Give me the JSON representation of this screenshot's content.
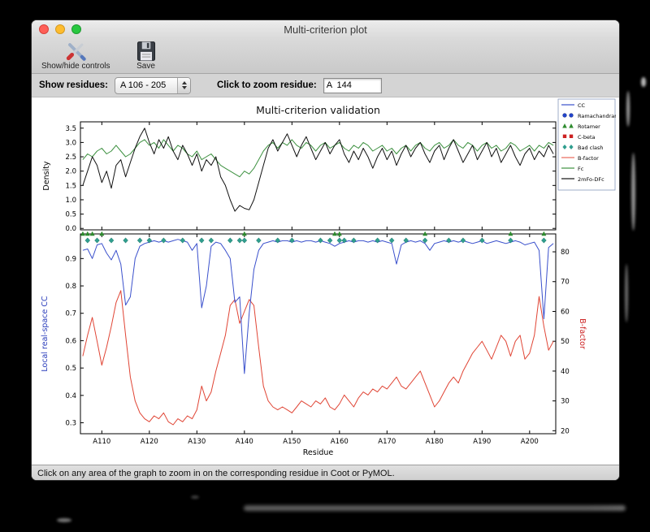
{
  "window": {
    "title": "Multi-criterion plot",
    "traffic_lights": {
      "close": "#ff5f57",
      "minimize": "#febc2e",
      "zoom": "#28c840"
    }
  },
  "toolbar": {
    "show_hide_label": "Show/hide controls",
    "save_label": "Save",
    "icons": {
      "show_hide": "crossed-tools-icon",
      "save": "floppy-disk-icon"
    }
  },
  "controls": {
    "show_residues_label": "Show residues:",
    "residue_range_value": "A 106 - 205",
    "zoom_residue_label": "Click to zoom residue:",
    "zoom_residue_value": "A  144"
  },
  "status_bar": {
    "message": "Click on any area of the graph to zoom in on the corresponding residue in Coot or PyMOL."
  },
  "chart_data": {
    "type": "line",
    "title": "Multi-criterion validation",
    "xlabel": "Residue",
    "x_start": 106,
    "xlim": [
      105.5,
      205.5
    ],
    "x_tick_values": [
      110,
      120,
      130,
      140,
      150,
      160,
      170,
      180,
      190,
      200
    ],
    "x_ticks": [
      "A110",
      "A120",
      "A130",
      "A140",
      "A150",
      "A160",
      "A170",
      "A180",
      "A190",
      "A200"
    ],
    "top_plot": {
      "ylabel": "Density",
      "ylim": [
        -0.05,
        3.72
      ],
      "yticks": [
        0.0,
        0.5,
        1.0,
        1.5,
        2.0,
        2.5,
        3.0,
        3.5
      ],
      "series": [
        {
          "name": "Fc",
          "color": "#3d9140",
          "values": [
            2.4,
            2.6,
            2.5,
            2.7,
            2.8,
            2.6,
            2.7,
            2.9,
            2.7,
            2.5,
            2.6,
            2.8,
            3.0,
            3.1,
            2.9,
            3.0,
            2.8,
            3.1,
            2.9,
            2.7,
            2.9,
            2.8,
            2.6,
            2.5,
            2.7,
            2.4,
            2.5,
            2.6,
            2.4,
            2.2,
            2.1,
            2.0,
            1.9,
            1.8,
            2.0,
            1.9,
            2.1,
            2.4,
            2.7,
            2.9,
            3.0,
            2.8,
            3.0,
            2.9,
            3.1,
            2.9,
            2.8,
            3.0,
            2.9,
            2.7,
            2.9,
            3.0,
            2.8,
            2.9,
            3.0,
            2.8,
            2.7,
            2.9,
            2.8,
            3.0,
            2.9,
            2.7,
            2.8,
            2.9,
            2.7,
            2.8,
            2.6,
            2.8,
            2.9,
            2.7,
            2.9,
            3.0,
            2.8,
            2.7,
            2.9,
            3.0,
            2.8,
            2.9,
            3.1,
            2.9,
            2.8,
            3.0,
            2.9,
            2.7,
            2.9,
            3.0,
            2.8,
            2.9,
            2.7,
            2.8,
            3.0,
            2.9,
            2.7,
            2.8,
            2.9,
            2.7,
            2.9,
            2.8,
            3.0,
            2.9
          ]
        },
        {
          "name": "2mFo-DFc",
          "color": "#111111",
          "values": [
            1.5,
            2.0,
            2.5,
            2.2,
            1.6,
            2.0,
            1.4,
            2.2,
            2.4,
            1.8,
            2.3,
            2.8,
            3.2,
            3.5,
            3.0,
            2.6,
            3.1,
            2.8,
            3.2,
            2.7,
            2.4,
            2.9,
            2.6,
            2.2,
            2.6,
            2.0,
            2.4,
            2.2,
            2.5,
            1.8,
            1.5,
            1.0,
            0.6,
            0.8,
            0.7,
            0.65,
            1.0,
            1.6,
            2.2,
            2.8,
            3.1,
            2.7,
            3.0,
            3.3,
            2.9,
            2.5,
            2.9,
            3.2,
            2.8,
            2.4,
            2.7,
            3.0,
            2.6,
            2.9,
            3.1,
            2.6,
            2.3,
            2.7,
            2.4,
            2.8,
            2.5,
            2.1,
            2.5,
            2.8,
            2.4,
            2.7,
            2.2,
            2.6,
            2.9,
            2.5,
            2.8,
            3.0,
            2.6,
            2.3,
            2.7,
            2.9,
            2.4,
            2.8,
            3.1,
            2.7,
            2.3,
            2.6,
            2.9,
            2.4,
            2.7,
            3.0,
            2.5,
            2.8,
            2.3,
            2.6,
            2.9,
            2.5,
            2.2,
            2.6,
            2.8,
            2.4,
            2.7,
            2.5,
            2.9,
            2.6
          ]
        }
      ]
    },
    "bottom_plot": {
      "ylabel_left": "Local real-space CC",
      "ylabel_left_color": "#2a3dbb",
      "ylim_left": [
        0.26,
        0.99
      ],
      "yticks_left": [
        0.3,
        0.4,
        0.5,
        0.6,
        0.7,
        0.8,
        0.9
      ],
      "ylabel_right": "B-factor",
      "ylabel_right_color": "#cc2222",
      "ylim_right": [
        19,
        86
      ],
      "yticks_right": [
        20,
        30,
        40,
        50,
        60,
        70,
        80
      ],
      "cc_series": {
        "name": "CC",
        "color": "#3a50cc",
        "values": [
          0.93,
          0.935,
          0.9,
          0.95,
          0.955,
          0.92,
          0.895,
          0.93,
          0.88,
          0.73,
          0.76,
          0.9,
          0.945,
          0.955,
          0.96,
          0.965,
          0.96,
          0.965,
          0.96,
          0.965,
          0.97,
          0.965,
          0.96,
          0.93,
          0.955,
          0.72,
          0.8,
          0.945,
          0.96,
          0.955,
          0.93,
          0.9,
          0.74,
          0.76,
          0.48,
          0.7,
          0.86,
          0.93,
          0.955,
          0.96,
          0.965,
          0.96,
          0.965,
          0.965,
          0.96,
          0.965,
          0.96,
          0.965,
          0.965,
          0.96,
          0.965,
          0.96,
          0.955,
          0.945,
          0.955,
          0.96,
          0.965,
          0.96,
          0.965,
          0.965,
          0.96,
          0.965,
          0.96,
          0.965,
          0.96,
          0.955,
          0.88,
          0.95,
          0.96,
          0.965,
          0.96,
          0.965,
          0.955,
          0.93,
          0.955,
          0.96,
          0.965,
          0.96,
          0.965,
          0.96,
          0.965,
          0.96,
          0.955,
          0.96,
          0.965,
          0.955,
          0.96,
          0.965,
          0.96,
          0.955,
          0.96,
          0.965,
          0.96,
          0.95,
          0.955,
          0.96,
          0.93,
          0.68,
          0.94,
          0.955
        ]
      },
      "bfactor_series": {
        "name": "B-factor",
        "color": "#e04434",
        "values": [
          45,
          52,
          58,
          50,
          42,
          48,
          55,
          63,
          67,
          52,
          38,
          30,
          26,
          24,
          23,
          25,
          24,
          26,
          23,
          22,
          24,
          23,
          25,
          24,
          27,
          35,
          30,
          33,
          40,
          46,
          52,
          62,
          64,
          56,
          60,
          64,
          62,
          48,
          35,
          30,
          28,
          27,
          28,
          27,
          26,
          28,
          30,
          29,
          28,
          30,
          29,
          31,
          28,
          27,
          29,
          32,
          30,
          28,
          31,
          33,
          32,
          34,
          33,
          35,
          34,
          36,
          38,
          35,
          34,
          36,
          38,
          40,
          36,
          32,
          28,
          30,
          33,
          36,
          38,
          36,
          40,
          43,
          46,
          48,
          50,
          47,
          44,
          48,
          52,
          50,
          45,
          50,
          52,
          44,
          46,
          52,
          65,
          55,
          47,
          50
        ]
      },
      "bad_clash_color": "#2f9e8e",
      "bad_clash_residues": [
        107,
        109,
        112,
        115,
        118,
        120,
        123,
        127,
        131,
        133,
        137,
        139,
        140,
        143,
        147,
        150,
        156,
        158,
        160,
        161,
        163,
        168,
        171,
        174,
        178,
        183,
        186,
        190,
        196,
        203
      ],
      "rotamer_color": "#2e8b2e",
      "rotamer_residues": [
        106,
        107,
        108,
        110,
        140,
        159,
        160,
        178,
        196,
        203
      ],
      "ramachandran_residues": [],
      "c_beta_residues": []
    },
    "legend": [
      {
        "label": "CC",
        "type": "line",
        "color": "#3a50cc"
      },
      {
        "label": "Ramachandran",
        "type": "circles",
        "color": "#2244cc"
      },
      {
        "label": "Rotamer",
        "type": "triangles",
        "color": "#2e8b2e"
      },
      {
        "label": "C-beta",
        "type": "squares",
        "color": "#cc2222"
      },
      {
        "label": "Bad clash",
        "type": "diamonds",
        "color": "#2f9e8e"
      },
      {
        "label": "B-factor",
        "type": "line",
        "color": "#e8675a"
      },
      {
        "label": "Fc",
        "type": "line",
        "color": "#3d9140"
      },
      {
        "label": "2mFo-DFc",
        "type": "line",
        "color": "#111111"
      }
    ]
  }
}
